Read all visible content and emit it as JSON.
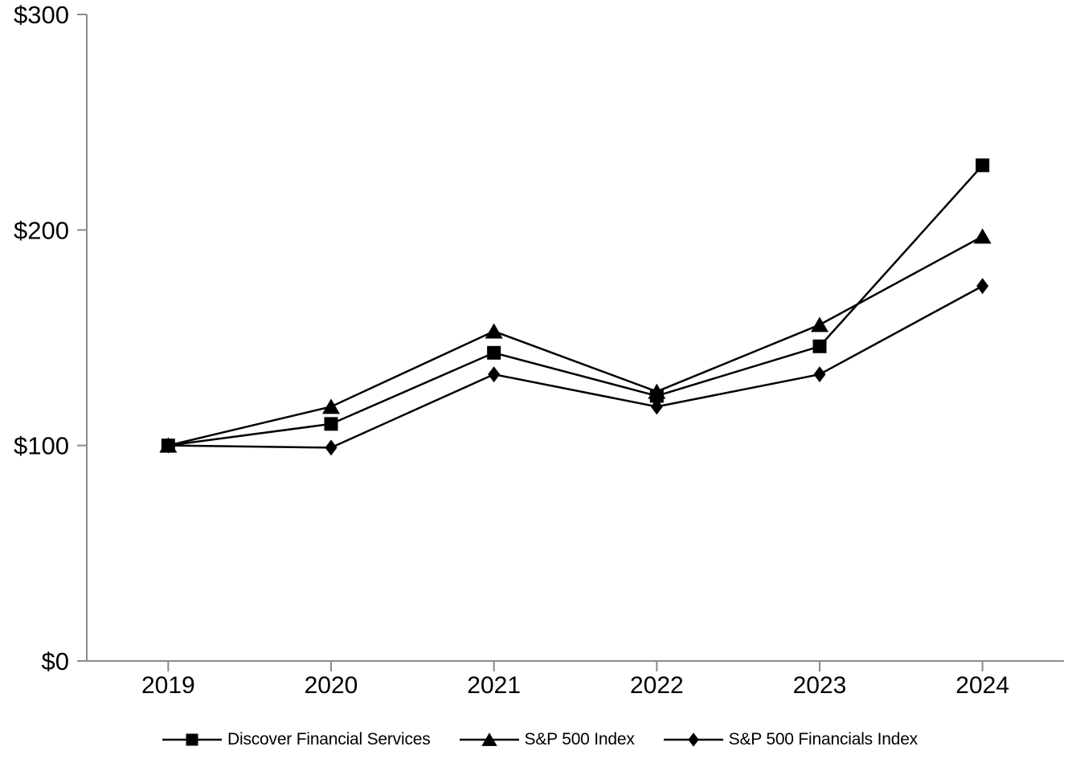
{
  "page": {
    "background": "#ffffff"
  },
  "chart_data": {
    "type": "line",
    "title": "",
    "xlabel": "",
    "ylabel": "",
    "x_categories": [
      "2019",
      "2020",
      "2021",
      "2022",
      "2023",
      "2024"
    ],
    "series": [
      {
        "name": "Discover Financial Services",
        "marker": "square",
        "values": [
          100,
          110,
          143,
          123,
          146,
          230
        ]
      },
      {
        "name": "S&P 500 Index",
        "marker": "triangle",
        "values": [
          100,
          118,
          153,
          125,
          156,
          197
        ]
      },
      {
        "name": "S&P 500 Financials Index",
        "marker": "diamond",
        "values": [
          100,
          99,
          133,
          118,
          133,
          174
        ]
      }
    ],
    "y_axis": {
      "min": 0,
      "max": 300,
      "ticks": [
        {
          "value": 0,
          "label": "$0"
        },
        {
          "value": 100,
          "label": "$100"
        },
        {
          "value": 200,
          "label": "$200"
        },
        {
          "value": 300,
          "label": "$300"
        }
      ]
    },
    "grid": false,
    "legend_position": "bottom",
    "colors": {
      "line": "#000000",
      "marker": "#000000",
      "axis": "#8a8a8a",
      "text": "#000000",
      "background": "#ffffff"
    }
  }
}
